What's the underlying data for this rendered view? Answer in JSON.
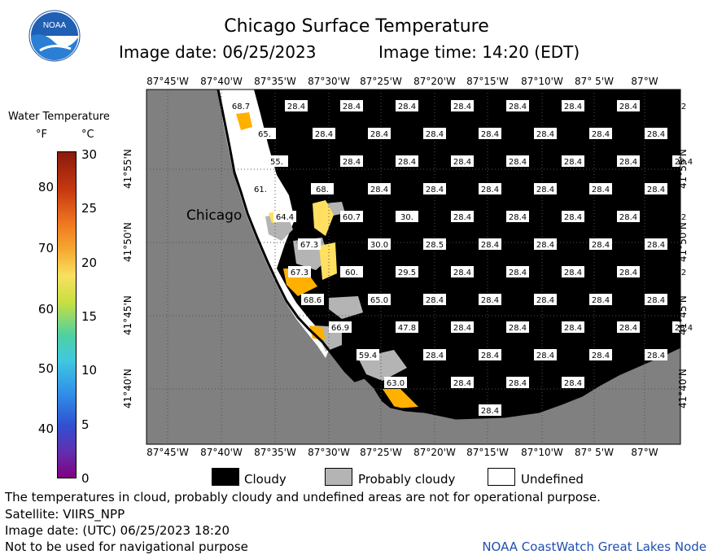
{
  "header": {
    "logo_text": "NOAA",
    "title": "Chicago Surface Temperature",
    "image_date": "Image date: 06/25/2023",
    "image_time": "Image time: 14:20 (EDT)"
  },
  "colorbar": {
    "title": "Water Temperature",
    "unit_f": "°F",
    "unit_c": "°C",
    "f_ticks": [
      "80",
      "70",
      "60",
      "50",
      "40"
    ],
    "c_ticks": [
      "30",
      "25",
      "20",
      "15",
      "10",
      "5",
      "0"
    ]
  },
  "axes": {
    "lon_ticks": [
      "87°45'W",
      "87°40'W",
      "87°35'W",
      "87°30'W",
      "87°25'W",
      "87°20'W",
      "87°15'W",
      "87°10'W",
      "87° 5'W",
      "87°W"
    ],
    "lat_ticks": [
      "41°55'N",
      "41°50'N",
      "41°45'N",
      "41°40'N"
    ]
  },
  "map": {
    "city_label": "Chicago",
    "colors": {
      "land": "#808080",
      "cloudy": "#000000",
      "probably_cloudy": "#b4b4b4",
      "undefined": "#ffffff",
      "warm": "#ffb000",
      "mild": "#ffe060"
    },
    "grid_rows": [
      [
        "68.7",
        "28.4",
        "28.4",
        "28.4",
        "28.4",
        "28.4",
        "28.4",
        "28.4",
        "2"
      ],
      [
        "65.",
        "28.4",
        "28.4",
        "28.4",
        "28.4",
        "28.4",
        "28.4",
        "28.4"
      ],
      [
        "55.",
        "28.4",
        "28.4",
        "28.4",
        "28.4",
        "28.4",
        "28.4",
        "28.4",
        "2"
      ],
      [
        "61.",
        "68.",
        "28.4",
        "28.4",
        "28.4",
        "28.4",
        "28.4",
        "28.4"
      ],
      [
        "64.4",
        "60.7",
        "30.",
        "28.4",
        "28.4",
        "28.4",
        "28.4",
        "2"
      ],
      [
        "67.3",
        "30.0",
        "28.5",
        "28.4",
        "28.4",
        "28.4",
        "28.4"
      ],
      [
        "67.3",
        "60.",
        "29.5",
        "28.4",
        "28.4",
        "28.4",
        "28.4",
        "2"
      ],
      [
        "68.6",
        "65.0",
        "28.4",
        "28.4",
        "28.4",
        "28.4",
        "28.4"
      ],
      [
        "66.9",
        "47.8",
        "28.4",
        "28.4",
        "28.4",
        "28.4",
        "28.4",
        "2"
      ],
      [
        "59.4",
        "28.4",
        "28.4",
        "28.4",
        "28.4",
        "28.4"
      ],
      [
        "63.0",
        "28.4",
        "28.4",
        "28.4"
      ],
      [
        "28.4"
      ]
    ]
  },
  "legend": {
    "cloudy": "Cloudy",
    "probably_cloudy": "Probably cloudy",
    "undefined": "Undefined"
  },
  "footer": {
    "disclaimer": "The temperatures in cloud, probably cloudy and undefined areas are not for operational purpose.",
    "satellite": "Satellite: VIIRS_NPP",
    "utc_date": "Image date: (UTC) 06/25/2023  18:20",
    "navigation": "Not to be used for navigational purpose",
    "credit": "NOAA CoastWatch Great Lakes Node"
  }
}
